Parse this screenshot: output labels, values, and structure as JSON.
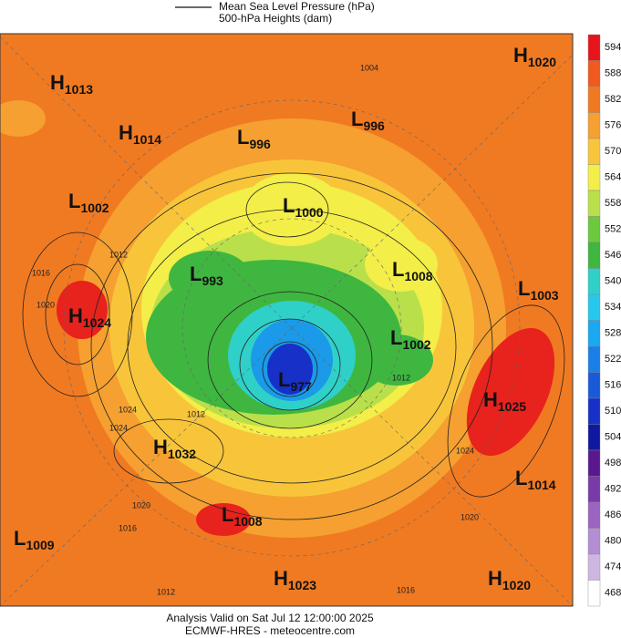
{
  "legend": {
    "pressure": "Mean Sea Level Pressure (hPa)",
    "heights": "500-hPa Heights (dam)"
  },
  "centers": [
    {
      "letter": "H",
      "value": "1013"
    },
    {
      "letter": "H",
      "value": "1014"
    },
    {
      "letter": "L",
      "value": "996"
    },
    {
      "letter": "L",
      "value": "996"
    },
    {
      "letter": "H",
      "value": "1020"
    },
    {
      "letter": "L",
      "value": "1002"
    },
    {
      "letter": "L",
      "value": "1000"
    },
    {
      "letter": "L",
      "value": "1008"
    },
    {
      "letter": "L",
      "value": "993"
    },
    {
      "letter": "L",
      "value": "1003"
    },
    {
      "letter": "H",
      "value": "1024"
    },
    {
      "letter": "L",
      "value": "1002"
    },
    {
      "letter": "L",
      "value": "977"
    },
    {
      "letter": "H",
      "value": "1025"
    },
    {
      "letter": "H",
      "value": "1032"
    },
    {
      "letter": "L",
      "value": "1014"
    },
    {
      "letter": "L",
      "value": "1008"
    },
    {
      "letter": "L",
      "value": "1009"
    },
    {
      "letter": "H",
      "value": "1023"
    },
    {
      "letter": "H",
      "value": "1020"
    }
  ],
  "isobar_labels": [
    "1004",
    "1012",
    "1016",
    "1020",
    "1024",
    "1012",
    "1024",
    "1020",
    "1016",
    "1012",
    "1012",
    "1024",
    "1020",
    "1016"
  ],
  "colorbar": {
    "labels": [
      "594",
      "588",
      "582",
      "576",
      "570",
      "564",
      "558",
      "552",
      "546",
      "540",
      "534",
      "528",
      "522",
      "516",
      "510",
      "504",
      "498",
      "492",
      "486",
      "480",
      "474",
      "468"
    ],
    "colors": [
      "#e8141c",
      "#f05a1e",
      "#f07a22",
      "#f5a030",
      "#f8c53a",
      "#f3ee48",
      "#b9e04a",
      "#6cc83c",
      "#3fb640",
      "#2fd0c8",
      "#28c8ee",
      "#1aa8f0",
      "#1a80e8",
      "#1a5ad8",
      "#1730c8",
      "#1018a0",
      "#5a1890",
      "#7a3aa8",
      "#9a64c0",
      "#b48ed2",
      "#cdb6e2",
      "#ffffff"
    ]
  },
  "footer": {
    "valid": "Analysis Valid on Sat Jul 12 12:00:00 2025",
    "source": "ECMWF-HRES  - meteocentre.com"
  }
}
